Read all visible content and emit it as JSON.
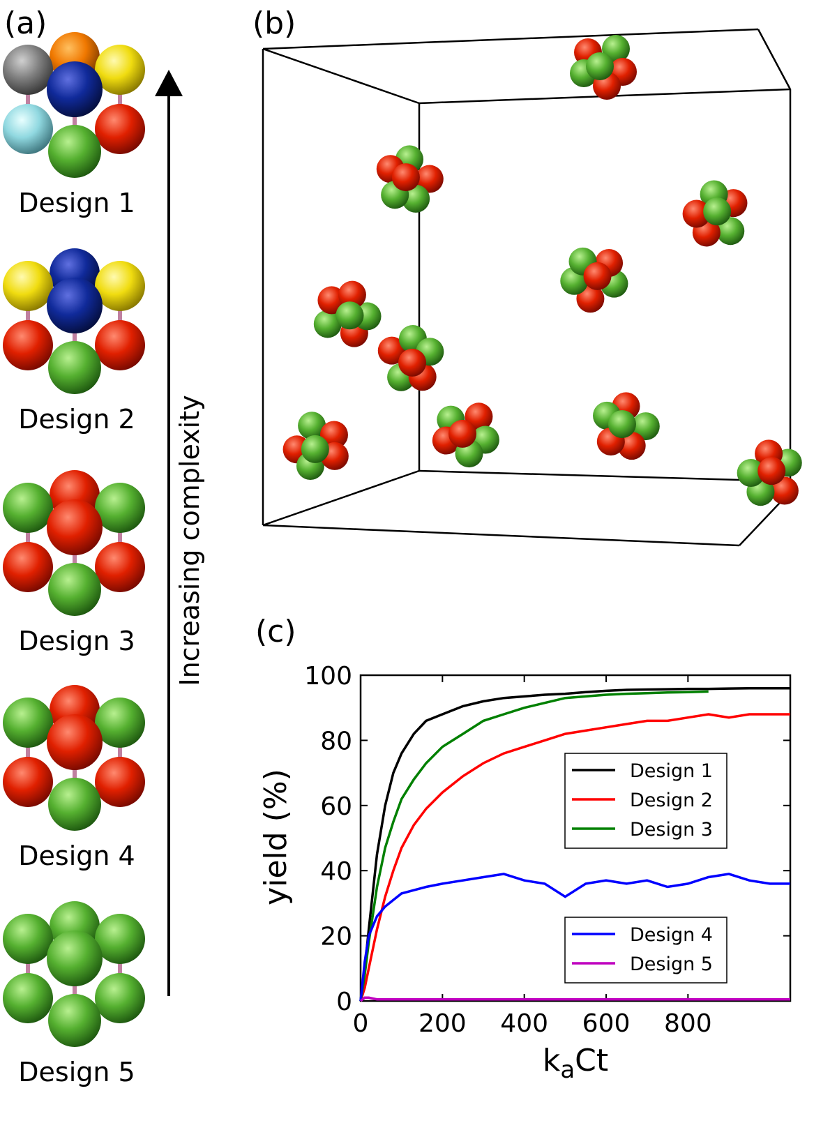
{
  "panel_labels": [
    "(a)",
    "(b)",
    "(c)"
  ],
  "designs": [
    "Design 1",
    "Design 2",
    "Design 3",
    "Design 4",
    "Design 5"
  ],
  "arrow_label": "Increasing complexity",
  "chart_data": {
    "type": "line",
    "xlabel_parts": [
      "k",
      "a",
      "Ct"
    ],
    "ylabel": "yield (%)",
    "xlim": [
      0,
      1050
    ],
    "ylim": [
      0,
      100
    ],
    "xticks": [
      0,
      200,
      400,
      600,
      800
    ],
    "yticks": [
      0,
      20,
      40,
      60,
      80,
      100
    ],
    "x": [
      0,
      10,
      20,
      40,
      60,
      80,
      100,
      130,
      160,
      200,
      250,
      300,
      350,
      400,
      450,
      500,
      550,
      600,
      650,
      700,
      750,
      800,
      850,
      900,
      950,
      1000,
      1050
    ],
    "series": [
      {
        "name": "Design 1",
        "color": "#000000",
        "values": [
          0,
          10,
          22,
          45,
          60,
          70,
          76,
          82,
          86,
          88,
          90.5,
          92,
          93,
          93.5,
          94,
          94.3,
          94.8,
          95.2,
          95.5,
          95.6,
          95.7,
          95.8,
          95.8,
          95.9,
          96,
          96,
          96
        ]
      },
      {
        "name": "Design 2",
        "color": "#ff0000",
        "values": [
          0,
          4,
          10,
          22,
          32,
          40,
          47,
          54,
          59,
          64,
          69,
          73,
          76,
          78,
          80,
          82,
          83,
          84,
          85,
          86,
          86,
          87,
          88,
          87,
          88,
          88,
          88
        ]
      },
      {
        "name": "Design 3",
        "color": "#008000",
        "values": [
          0,
          8,
          18,
          35,
          47,
          55,
          62,
          68,
          73,
          78,
          82,
          86,
          88,
          90,
          91.5,
          93,
          93.5,
          94,
          94.3,
          94.5,
          94.7,
          94.8,
          95,
          null,
          null,
          null,
          null
        ]
      },
      {
        "name": "Design 4",
        "color": "#0000ff",
        "values": [
          0,
          12,
          20,
          26,
          29,
          31,
          33,
          34,
          35,
          36,
          37,
          38,
          39,
          37,
          36,
          32,
          36,
          37,
          36,
          37,
          35,
          36,
          38,
          39,
          37,
          36,
          36
        ]
      },
      {
        "name": "Design 5",
        "color": "#bf00bf",
        "values": [
          0,
          1,
          1,
          0.5,
          0.5,
          0.5,
          0.5,
          0.5,
          0.5,
          0.5,
          0.5,
          0.5,
          0.5,
          0.5,
          0.5,
          0.5,
          0.5,
          0.5,
          0.5,
          0.5,
          0.5,
          0.5,
          0.5,
          0.5,
          0.5,
          0.5,
          0.5
        ]
      }
    ]
  }
}
